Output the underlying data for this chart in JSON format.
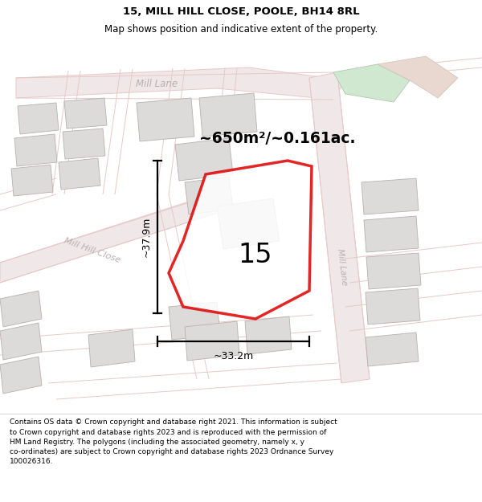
{
  "title_line1": "15, MILL HILL CLOSE, POOLE, BH14 8RL",
  "title_line2": "Map shows position and indicative extent of the property.",
  "area_label": "~650m²/~0.161ac.",
  "property_number": "15",
  "dim_height": "~37.9m",
  "dim_width": "~33.2m",
  "footer": "Contains OS data © Crown copyright and database right 2021. This information is subject to Crown copyright and database rights 2023 and is reproduced with the permission of HM Land Registry. The polygons (including the associated geometry, namely x, y co-ordinates) are subject to Crown copyright and database rights 2023 Ordnance Survey 100026316.",
  "bg_color": "#f5f0f0",
  "road_color": "#e8c8c8",
  "road_fill": "#f0e8e8",
  "building_fill": "#dddada",
  "building_edge": "#b8b0b0",
  "property_color": "#dd0000",
  "green_fill": "#d0e8d0",
  "green_edge": "#b0c8b0",
  "road_label_color": "#b8b0b0",
  "title_size": 9.5,
  "subtitle_size": 8.5,
  "footer_size": 6.5
}
